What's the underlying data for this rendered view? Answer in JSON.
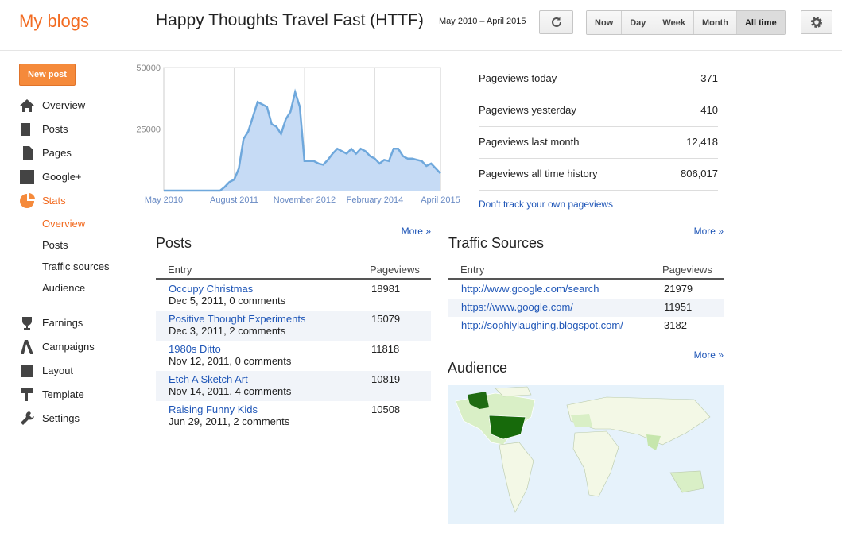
{
  "header": {
    "brand": "My blogs",
    "blog_title": "Happy Thoughts Travel Fast (HTTF)",
    "separator": "·",
    "date_range": "May 2010 – April 2015",
    "range_buttons": [
      "Now",
      "Day",
      "Week",
      "Month",
      "All time"
    ]
  },
  "sidebar": {
    "new_post": "New post",
    "nav": [
      "Overview",
      "Posts",
      "Pages",
      "Google+",
      "Stats"
    ],
    "stats_sub": [
      "Overview",
      "Posts",
      "Traffic sources",
      "Audience"
    ],
    "nav_more": [
      "Earnings",
      "Campaigns",
      "Layout",
      "Template",
      "Settings"
    ]
  },
  "chart_data": {
    "type": "area",
    "color": "#6fa8dc",
    "fill": "#c6dbf5",
    "categories": [
      "May 2010",
      null,
      null,
      null,
      null,
      null,
      null,
      null,
      null,
      null,
      null,
      null,
      null,
      null,
      null,
      "August 2011",
      null,
      null,
      null,
      null,
      null,
      null,
      null,
      null,
      null,
      null,
      null,
      null,
      null,
      null,
      "November 2012",
      null,
      null,
      null,
      null,
      null,
      null,
      null,
      null,
      null,
      null,
      null,
      null,
      null,
      null,
      "February 2014",
      null,
      null,
      null,
      null,
      null,
      null,
      null,
      null,
      null,
      null,
      null,
      null,
      null,
      "April 2015"
    ],
    "values": [
      0,
      0,
      0,
      0,
      0,
      0,
      0,
      0,
      0,
      0,
      0,
      0,
      0,
      1500,
      3500,
      4500,
      9000,
      21000,
      24000,
      30000,
      36000,
      35000,
      34000,
      27000,
      26000,
      23000,
      29000,
      32000,
      40000,
      34000,
      12000,
      12000,
      12000,
      11000,
      10500,
      12500,
      15000,
      17000,
      16000,
      15000,
      17000,
      15000,
      17000,
      16000,
      14000,
      13000,
      11000,
      12500,
      12000,
      17000,
      17000,
      14000,
      13000,
      13000,
      12500,
      12000,
      10000,
      11000,
      9000,
      7000
    ],
    "ylim": [
      0,
      50000
    ],
    "yticks": [
      25000,
      50000
    ],
    "grid": true
  },
  "summary": {
    "rows": [
      [
        "Pageviews today",
        "371"
      ],
      [
        "Pageviews yesterday",
        "410"
      ],
      [
        "Pageviews last month",
        "12,418"
      ],
      [
        "Pageviews all time history",
        "806,017"
      ]
    ],
    "link": "Don't track your own pageviews"
  },
  "posts": {
    "more": "More »",
    "title": "Posts",
    "headers": [
      "Entry",
      "Pageviews"
    ],
    "rows": [
      {
        "title": "Occupy Christmas",
        "meta": "Dec 5, 2011, 0 comments",
        "pageviews": 18981
      },
      {
        "title": "Positive Thought Experiments",
        "meta": "Dec 3, 2011, 2 comments",
        "pageviews": 15079
      },
      {
        "title": "1980s Ditto",
        "meta": "Nov 12, 2011, 0 comments",
        "pageviews": 11818
      },
      {
        "title": "Etch A Sketch Art",
        "meta": "Nov 14, 2011, 4 comments",
        "pageviews": 10819
      },
      {
        "title": "Raising Funny Kids",
        "meta": "Jun 29, 2011, 2 comments",
        "pageviews": 10508
      }
    ]
  },
  "traffic": {
    "more": "More »",
    "title": "Traffic Sources",
    "headers": [
      "Entry",
      "Pageviews"
    ],
    "rows": [
      {
        "url": "http://www.google.com/search",
        "pageviews": 21979
      },
      {
        "url": "https://www.google.com/",
        "pageviews": 11951
      },
      {
        "url": "http://sophlylaughing.blogspot.com/",
        "pageviews": 3182
      }
    ]
  },
  "audience": {
    "more": "More »",
    "title": "Audience"
  }
}
